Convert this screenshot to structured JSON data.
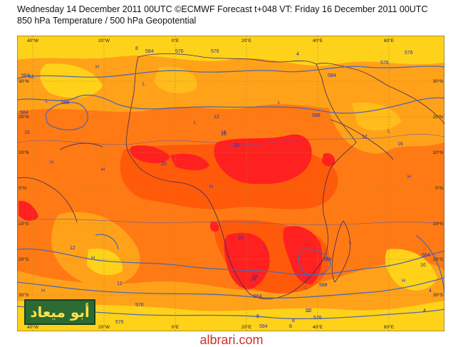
{
  "header": {
    "line1": "Wednesday 14 December 2011 00UTC ©ECMWF Forecast t+048 VT: Friday 16 December 2011 00UTC",
    "line2": "850 hPa Temperature / 500 hPa Geopotential"
  },
  "axes": {
    "lon_ticks": [
      "40°W",
      "20°W",
      "0°E",
      "20°E",
      "40°E",
      "60°E"
    ],
    "lat_ticks": [
      "30°N",
      "20°N",
      "10°N",
      "0°N",
      "10°S",
      "20°S",
      "30°S"
    ]
  },
  "contour_labels": [
    "584",
    "576",
    "588",
    "12",
    "16",
    "20",
    "24",
    "588",
    "584",
    "576",
    "576",
    "584",
    "12",
    "16",
    "8",
    "4",
    "12",
    "16",
    "20",
    "24",
    "20",
    "12",
    "576",
    "584",
    "8",
    "4",
    "12",
    "16",
    "588",
    "584",
    "576",
    "8",
    "4",
    "576",
    "584",
    "8",
    "12",
    "16",
    "12",
    "584",
    "588",
    "576"
  ],
  "pressure_markers": [
    "H",
    "L"
  ],
  "watermark": {
    "arabic": "أبو ميعاد",
    "site": "albrari.com"
  },
  "colors": {
    "cold_yellow": "#ffd21a",
    "warm_orange": "#ffa21a",
    "hot_orange": "#ff7a14",
    "very_hot_orange": "#ff5a0a",
    "extreme_red": "#ff2020",
    "contour_blue": "#5566aa"
  }
}
